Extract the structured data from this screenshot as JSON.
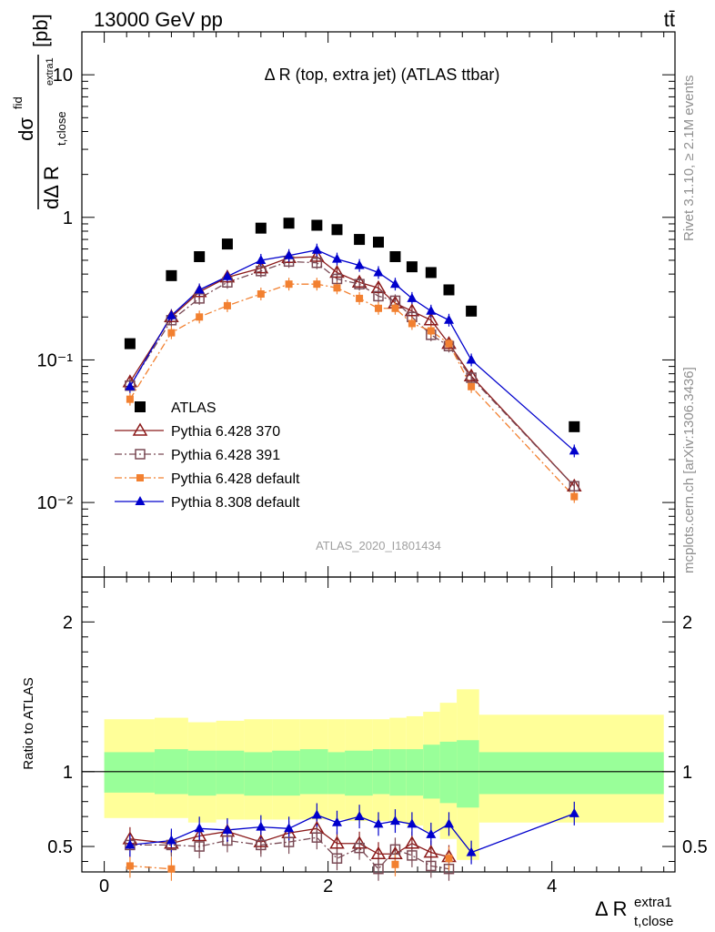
{
  "header": {
    "left": "13000 GeV pp",
    "right": "tt̄"
  },
  "side_labels": {
    "rivet": "Rivet 3.1.10, ≥ 2.1M events",
    "mcplots": "mcplots.cern.ch [arXiv:1306.3436]"
  },
  "chart_data": {
    "type": "scatter",
    "title": "Δ R (top, extra jet) (ATLAS ttbar)",
    "watermark": "ATLAS_2020_I1801434",
    "xlabel": "Δ R",
    "xlabel_sup": "extra1",
    "xlabel_sub": "t,close",
    "ylabel": "dσ/dΔ R t,close extra1 [pb]",
    "ylabel_parts": {
      "num": "dσ",
      "num_sup": "fid",
      "den": "dΔ R",
      "den_sub": "t,close",
      "den_subsup": "extra1",
      "unit": "[pb]"
    },
    "ratio_ylabel": "Ratio to ATLAS",
    "xlim": [
      -0.2,
      5.1
    ],
    "ylim": [
      0.003,
      20
    ],
    "ratio_ylim": [
      0.33,
      2.3
    ],
    "log_y": true,
    "x_ticks": [
      "0",
      "2",
      "4"
    ],
    "y_ticks": [
      "10⁻²",
      "10⁻¹",
      "1",
      "10"
    ],
    "ratio_ticks": [
      "0.5",
      "1",
      "2"
    ],
    "legend_placement": "lower-left",
    "x": [
      0.23,
      0.6,
      0.85,
      1.1,
      1.4,
      1.65,
      1.9,
      2.08,
      2.28,
      2.45,
      2.6,
      2.75,
      2.92,
      3.08,
      3.28,
      4.2
    ],
    "atlas": [
      0.13,
      0.39,
      0.53,
      0.65,
      0.84,
      0.91,
      0.88,
      0.82,
      0.7,
      0.67,
      0.53,
      0.45,
      0.41,
      0.31,
      0.22,
      0.034
    ],
    "series": [
      {
        "name": "Pythia 6.428 370",
        "color": "#8b1a1a",
        "values": [
          0.07,
          0.2,
          0.3,
          0.38,
          0.44,
          0.52,
          0.53,
          0.41,
          0.35,
          0.32,
          0.25,
          0.22,
          0.19,
          0.13,
          0.077,
          0.013
        ],
        "ratio": [
          0.55,
          0.52,
          0.57,
          0.6,
          0.53,
          0.59,
          0.62,
          0.52,
          0.52,
          0.45,
          0.45,
          0.52,
          0.46,
          0.43,
          null,
          null
        ]
      },
      {
        "name": "Pythia 6.428 391",
        "color": "#7a4a55",
        "values": [
          0.066,
          0.19,
          0.27,
          0.35,
          0.42,
          0.49,
          0.48,
          0.37,
          0.34,
          0.28,
          0.26,
          0.2,
          0.15,
          0.125,
          0.075,
          0.013
        ],
        "ratio": [
          0.51,
          0.51,
          0.5,
          0.54,
          0.51,
          0.53,
          0.56,
          0.42,
          0.49,
          0.35,
          0.48,
          0.44,
          0.37,
          0.35,
          null,
          null
        ]
      },
      {
        "name": "Pythia 6.428 default",
        "color": "#f28030",
        "values": [
          0.053,
          0.155,
          0.2,
          0.24,
          0.29,
          0.34,
          0.34,
          0.32,
          0.27,
          0.23,
          0.23,
          0.18,
          0.16,
          0.13,
          0.065,
          0.011
        ],
        "ratio": [
          0.37,
          0.35,
          null,
          null,
          null,
          null,
          null,
          null,
          null,
          null,
          0.38,
          null,
          null,
          0.42,
          null,
          null
        ]
      },
      {
        "name": "Pythia 8.308 default",
        "color": "#0000cc",
        "values": [
          0.065,
          0.205,
          0.31,
          0.385,
          0.5,
          0.54,
          0.59,
          0.51,
          0.46,
          0.41,
          0.34,
          0.27,
          0.22,
          0.19,
          0.1,
          0.023
        ],
        "ratio": [
          0.51,
          0.54,
          0.62,
          0.61,
          0.63,
          0.62,
          0.71,
          0.66,
          0.7,
          0.65,
          0.67,
          0.65,
          0.58,
          0.65,
          0.46,
          0.72
        ]
      }
    ],
    "ratio_band_edges": [
      0.0,
      0.45,
      0.75,
      1.0,
      1.25,
      1.5,
      1.75,
      2.0,
      2.15,
      2.4,
      2.55,
      2.7,
      2.85,
      3.0,
      3.15,
      3.35,
      5.0
    ],
    "ratio_band_inner": [
      [
        0.86,
        1.13
      ],
      [
        0.85,
        1.15
      ],
      [
        0.84,
        1.14
      ],
      [
        0.85,
        1.14
      ],
      [
        0.84,
        1.13
      ],
      [
        0.84,
        1.14
      ],
      [
        0.85,
        1.15
      ],
      [
        0.85,
        1.13
      ],
      [
        0.84,
        1.14
      ],
      [
        0.85,
        1.15
      ],
      [
        0.84,
        1.15
      ],
      [
        0.84,
        1.15
      ],
      [
        0.82,
        1.18
      ],
      [
        0.79,
        1.2
      ],
      [
        0.76,
        1.21
      ],
      [
        0.85,
        1.13
      ]
    ],
    "ratio_band_outer": [
      [
        0.69,
        1.35
      ],
      [
        0.69,
        1.36
      ],
      [
        0.66,
        1.33
      ],
      [
        0.68,
        1.34
      ],
      [
        0.68,
        1.35
      ],
      [
        0.68,
        1.35
      ],
      [
        0.68,
        1.35
      ],
      [
        0.68,
        1.35
      ],
      [
        0.67,
        1.35
      ],
      [
        0.67,
        1.35
      ],
      [
        0.66,
        1.36
      ],
      [
        0.64,
        1.37
      ],
      [
        0.6,
        1.4
      ],
      [
        0.55,
        1.46
      ],
      [
        0.41,
        1.55
      ],
      [
        0.66,
        1.38
      ]
    ]
  }
}
